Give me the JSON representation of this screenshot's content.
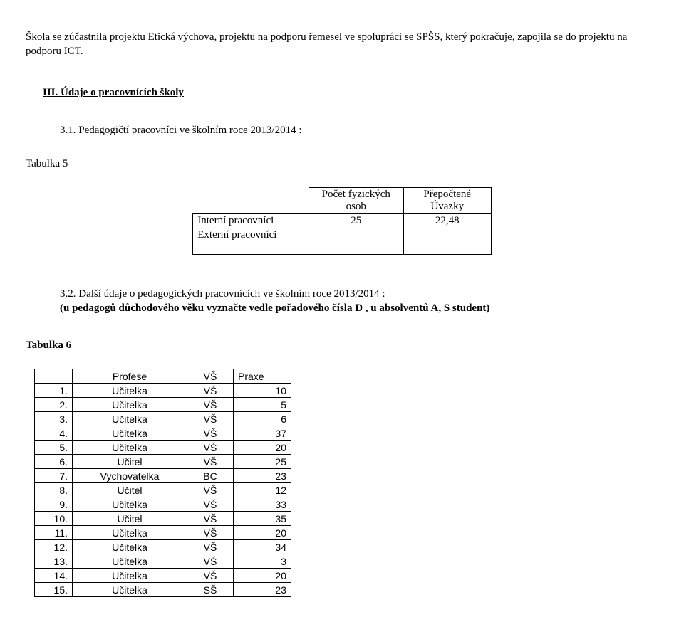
{
  "intro": "Škola se zúčastnila projektu Etická výchova, projektu na podporu  řemesel ve spolupráci se SPŠS, který pokračuje, zapojila se do projektu na podporu ICT.",
  "section3": "III.  Údaje o pracovnících školy",
  "sub31": "3.1. Pedagogičtí pracovníci ve školním roce 2013/2014 :",
  "t5_caption": "Tabulka 5",
  "t5": {
    "h1": "Počet fyzických osob",
    "h2": "Přepočtené Úvazky",
    "r1_label": "Interní pracovníci",
    "r1_v1": "25",
    "r1_v2": "22,48",
    "r2_label": "Externí pracovníci"
  },
  "sub32a": "3.2. Další údaje o pedagogických pracovnících ve školním roce 2013/2014 :",
  "sub32b": "(u pedagogů důchodového věku vyznačte vedle pořadového čísla D , u absolventů A, S student)",
  "t6_caption": "Tabulka 6",
  "t6": {
    "h_prof": "Profese",
    "h_deg": "VŠ",
    "h_praxe": "Praxe",
    "rows": [
      {
        "i": "1.",
        "p": "Učitelka",
        "d": "VŠ",
        "x": "10"
      },
      {
        "i": "2.",
        "p": "Učitelka",
        "d": "VŠ",
        "x": "5"
      },
      {
        "i": "3.",
        "p": "Učitelka",
        "d": "VŠ",
        "x": "6"
      },
      {
        "i": "4.",
        "p": "Učitelka",
        "d": "VŠ",
        "x": "37"
      },
      {
        "i": "5.",
        "p": "Učitelka",
        "d": "VŠ",
        "x": "20"
      },
      {
        "i": "6.",
        "p": "Učitel",
        "d": "VŠ",
        "x": "25"
      },
      {
        "i": "7.",
        "p": "Vychovatelka",
        "d": "BC",
        "x": "23"
      },
      {
        "i": "8.",
        "p": "Učitel",
        "d": "VŠ",
        "x": "12"
      },
      {
        "i": "9.",
        "p": "Učitelka",
        "d": "VŠ",
        "x": "33"
      },
      {
        "i": "10.",
        "p": "Učitel",
        "d": "VŠ",
        "x": "35"
      },
      {
        "i": "11.",
        "p": "Učitelka",
        "d": "VŠ",
        "x": "20"
      },
      {
        "i": "12.",
        "p": "Učitelka",
        "d": "VŠ",
        "x": "34"
      },
      {
        "i": "13.",
        "p": "Učitelka",
        "d": "VŠ",
        "x": "3"
      },
      {
        "i": "14.",
        "p": "Učitelka",
        "d": "VŠ",
        "x": "20"
      },
      {
        "i": "15.",
        "p": "Učitelka",
        "d": "SŠ",
        "x": "23"
      }
    ]
  }
}
